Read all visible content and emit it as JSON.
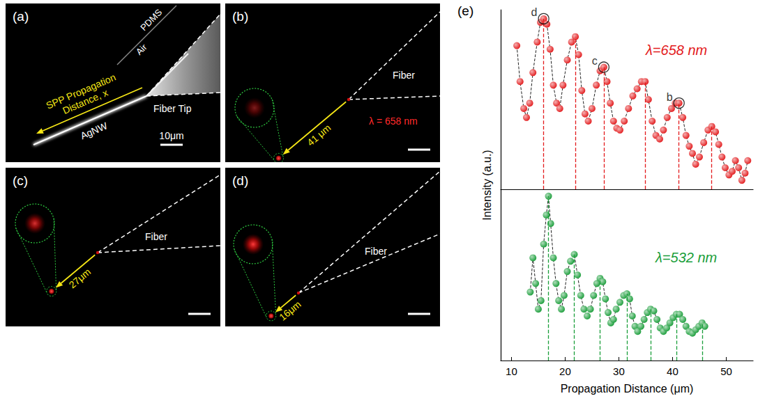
{
  "image_panels": [
    {
      "label": "(a)",
      "upper_medium": "PDMS",
      "lower_medium": "Air",
      "arrow_label": [
        "SPP Propagation",
        "Distance, x"
      ],
      "fiber": "Fiber Tip",
      "wire": "AgNW",
      "scale_bar": "10μm"
    },
    {
      "label": "(b)",
      "fiber": "Fiber",
      "wavelength": "λ = 658 nm",
      "distance": "41 μm"
    },
    {
      "label": "(c)",
      "fiber": "Fiber",
      "distance": "27μm"
    },
    {
      "label": "(d)",
      "fiber": "Fiber",
      "distance": "16μm"
    }
  ],
  "chart_data": [
    {
      "type": "line",
      "panel": "(e)",
      "ylabel": "Intensity (a.u.)",
      "xlim": [
        8,
        55
      ],
      "xticks": [],
      "ylim": [
        0,
        100
      ],
      "yticks": [],
      "tick_labels": false,
      "grid": false,
      "marker": "circle",
      "line_style": "dashed",
      "x": [
        11.0,
        11.6,
        12.3,
        12.8,
        13.4,
        14.0,
        14.8,
        15.4,
        16.0,
        16.6,
        17.2,
        17.8,
        18.4,
        19.0,
        19.6,
        20.4,
        21.2,
        21.9,
        22.5,
        23.1,
        23.7,
        24.3,
        25.0,
        25.8,
        26.5,
        27.2,
        27.8,
        28.4,
        29.0,
        29.6,
        30.2,
        31.0,
        31.8,
        32.6,
        33.4,
        34.2,
        34.9,
        35.5,
        36.2,
        36.9,
        37.6,
        38.3,
        39.0,
        39.8,
        40.5,
        41.2,
        41.9,
        42.5,
        43.1,
        43.7,
        44.3,
        45.0,
        45.8,
        46.6,
        47.3,
        48.0,
        48.6,
        49.2,
        49.8,
        50.5,
        51.1,
        51.7,
        52.3,
        52.9,
        53.5,
        54.0
      ],
      "series": [
        {
          "name": "λ=658 nm",
          "color": "#e31a1c",
          "values": [
            80,
            60,
            45,
            40,
            48,
            65,
            82,
            93,
            95,
            92,
            78,
            58,
            48,
            45,
            58,
            72,
            82,
            85,
            75,
            55,
            42,
            38,
            45,
            58,
            66,
            68,
            60,
            48,
            38,
            34,
            33,
            38,
            45,
            52,
            56,
            60,
            60,
            50,
            38,
            30,
            28,
            33,
            40,
            45,
            48,
            48,
            40,
            30,
            24,
            20,
            14,
            18,
            26,
            33,
            35,
            32,
            25,
            18,
            12,
            8,
            10,
            16,
            12,
            5,
            9,
            16
          ],
          "vlines": [
            16.0,
            21.9,
            27.2,
            34.9,
            41.2,
            47.3
          ]
        }
      ],
      "annotations": [
        {
          "text": "d",
          "x": 16.0,
          "y": 95
        },
        {
          "text": "c",
          "x": 27.2,
          "y": 68
        },
        {
          "text": "b",
          "x": 41.2,
          "y": 48
        }
      ]
    },
    {
      "type": "line",
      "xlabel": "Propagation Distance (μm)",
      "xlim": [
        8,
        55
      ],
      "xticks": [
        10,
        20,
        30,
        40,
        50
      ],
      "ylim": [
        0,
        100
      ],
      "yticks": [],
      "tick_labels": "x",
      "grid": false,
      "marker": "circle",
      "line_style": "dashed",
      "x": [
        13.5,
        14.0,
        14.5,
        15.0,
        15.5,
        16.0,
        16.5,
        16.9,
        17.3,
        17.8,
        18.3,
        18.8,
        19.3,
        19.8,
        20.4,
        21.0,
        21.7,
        22.3,
        22.9,
        23.5,
        24.1,
        24.7,
        25.3,
        25.9,
        26.5,
        27.0,
        27.5,
        28.0,
        28.5,
        29.0,
        29.5,
        30.2,
        30.9,
        31.5,
        32.0,
        32.5,
        33.0,
        33.5,
        34.1,
        34.7,
        35.3,
        35.9,
        36.5,
        37.1,
        37.7,
        38.3,
        38.9,
        39.5,
        40.1,
        40.7,
        41.3,
        41.9,
        42.5,
        43.1,
        43.7,
        44.3,
        44.9,
        45.5,
        46.0
      ],
      "series": [
        {
          "name": "λ=532 nm",
          "color": "#1a9e3a",
          "values": [
            40,
            60,
            45,
            30,
            35,
            68,
            85,
            96,
            80,
            60,
            45,
            35,
            30,
            38,
            52,
            58,
            62,
            50,
            38,
            30,
            26,
            30,
            38,
            45,
            48,
            46,
            36,
            28,
            22,
            24,
            30,
            34,
            38,
            39,
            36,
            26,
            20,
            17,
            20,
            24,
            28,
            30,
            29,
            24,
            19,
            17,
            19,
            22,
            25,
            27,
            27,
            24,
            20,
            17,
            16,
            18,
            20,
            22,
            20
          ],
          "vlines": [
            16.9,
            21.7,
            26.5,
            31.5,
            35.9,
            40.7,
            45.5
          ]
        }
      ]
    }
  ]
}
